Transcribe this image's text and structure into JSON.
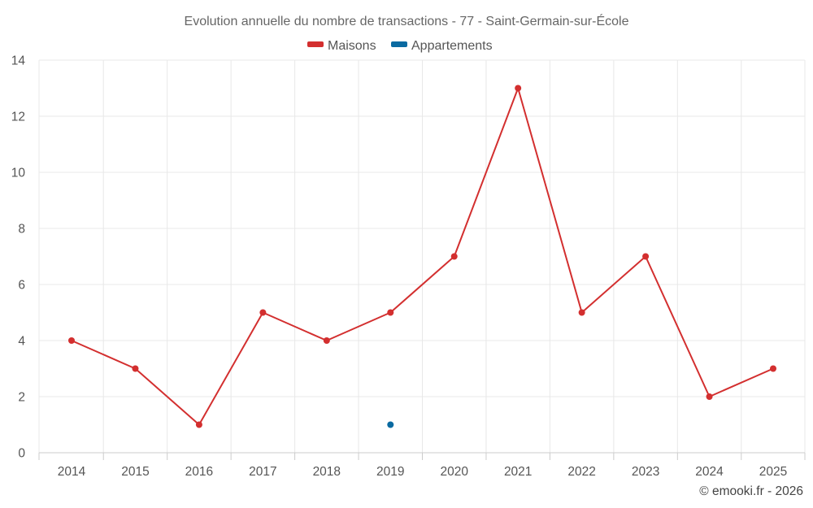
{
  "chart_data": {
    "type": "line",
    "title": "Evolution annuelle du nombre de transactions - 77 - Saint-Germain-sur-École",
    "categories": [
      "2014",
      "2015",
      "2016",
      "2017",
      "2018",
      "2019",
      "2020",
      "2021",
      "2022",
      "2023",
      "2024",
      "2025"
    ],
    "series": [
      {
        "name": "Maisons",
        "color": "#d32f2f",
        "values": [
          4,
          3,
          1,
          5,
          4,
          5,
          7,
          13,
          5,
          7,
          2,
          3
        ]
      },
      {
        "name": "Appartements",
        "color": "#0a6aa1",
        "values": [
          null,
          null,
          null,
          null,
          null,
          1,
          null,
          null,
          null,
          null,
          null,
          null
        ]
      }
    ],
    "ylim": [
      0,
      14
    ],
    "yticks": [
      "0",
      "2",
      "4",
      "6",
      "8",
      "10",
      "12",
      "14"
    ],
    "xlabel": "",
    "ylabel": "",
    "grid": true,
    "legend": "top-center"
  },
  "credit": "© emooki.fr - 2026"
}
